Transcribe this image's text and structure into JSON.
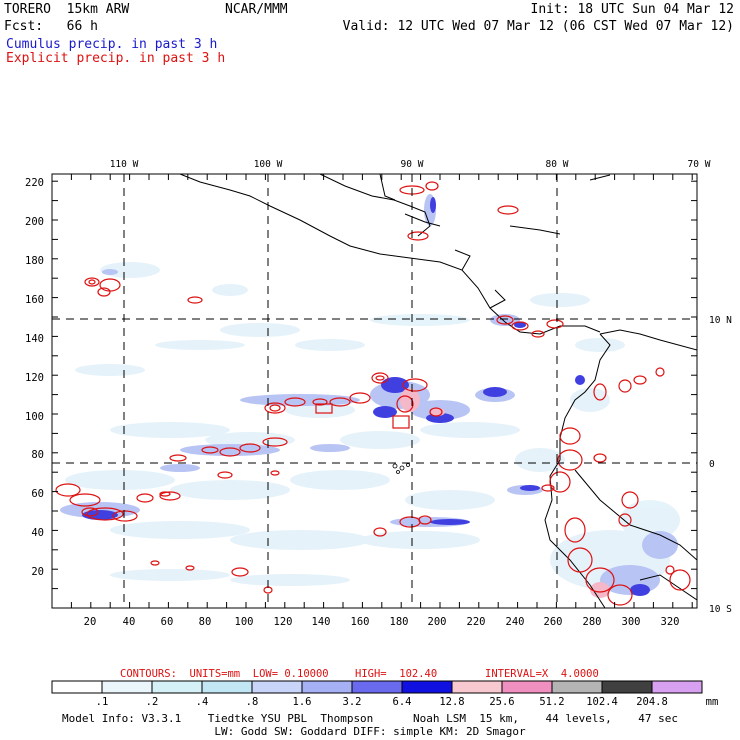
{
  "header": {
    "model": "TORERO  15km ARW",
    "center": "NCAR/MMM",
    "init": "Init: 18 UTC Sun 04 Mar 12",
    "fcst": "Fcst:   66 h",
    "valid": "Valid: 12 UTC Wed 07 Mar 12 (06 CST Wed 07 Mar 12)",
    "cumulus": "Cumulus precip. in past 3 h",
    "explicit": "Explicit precip. in past 3 h"
  },
  "axes": {
    "x_ticks": [
      "20",
      "40",
      "60",
      "80",
      "100",
      "120",
      "140",
      "160",
      "180",
      "200",
      "220",
      "240",
      "260",
      "280",
      "300",
      "320"
    ],
    "y_ticks": [
      "20",
      "40",
      "60",
      "80",
      "100",
      "120",
      "140",
      "160",
      "180",
      "200",
      "220"
    ],
    "lon_labels": [
      "110 W",
      "100 W",
      "90 W",
      "80 W",
      "70 W"
    ],
    "lat_labels": [
      "10 N",
      "0",
      "10 S"
    ]
  },
  "contours": {
    "units": "CONTOURS:  UNITS=mm  LOW= 0.10000",
    "high": "HIGH=  102.40",
    "interval": "INTERVAL=X  4.0000"
  },
  "colorbar": {
    "unit": "mm",
    "labels": [
      ".1",
      ".2",
      ".4",
      ".8",
      "1.6",
      "3.2",
      "6.4",
      "12.8",
      "25.6",
      "51.2",
      "102.4",
      "204.8"
    ],
    "colors": [
      "#ffffff",
      "#eaf6fb",
      "#d6f0f8",
      "#c2e6f4",
      "#c8d4f8",
      "#a6b0f4",
      "#6a6aee",
      "#1010e0",
      "#f8c8d0",
      "#f090c0",
      "#b4b4b4",
      "#404040",
      "#d8a0f0"
    ]
  },
  "footer": {
    "line1": "Model Info: V3.3.1    Tiedtke YSU PBL  Thompson      Noah LSM  15 km,    44 levels,    47 sec",
    "line2": "LW: Godd SW: Goddard DIFF: simple KM: 2D Smagor"
  }
}
